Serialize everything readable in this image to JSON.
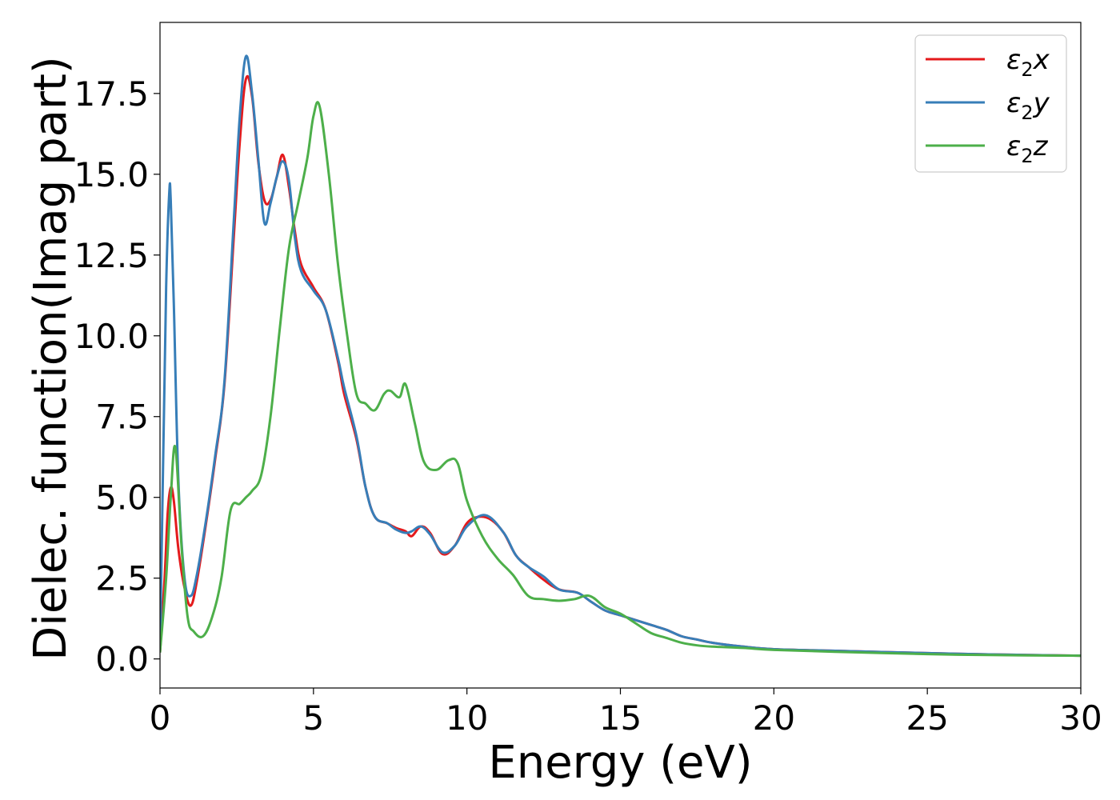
{
  "chart_data": {
    "type": "line",
    "title": "",
    "xlabel": "Energy (eV)",
    "ylabel": "Dielec. function(Imag part)",
    "xlim": [
      0,
      30
    ],
    "ylim": [
      -0.9,
      19.7
    ],
    "xticks": [
      0,
      5,
      10,
      15,
      20,
      25,
      30
    ],
    "xtick_labels": [
      "0",
      "5",
      "10",
      "15",
      "20",
      "25",
      "30"
    ],
    "yticks": [
      0,
      2.5,
      5,
      7.5,
      10,
      12.5,
      15,
      17.5
    ],
    "ytick_labels": [
      "0.0",
      "2.5",
      "5.0",
      "7.5",
      "10.0",
      "12.5",
      "15.0",
      "17.5"
    ],
    "grid": false,
    "legend_position": "top-right",
    "series": [
      {
        "name": "ε₂x",
        "legend_main": "ε",
        "legend_sub": "2",
        "legend_var": "x",
        "color": "#e41a1c",
        "x": [
          0,
          0.15,
          0.25,
          0.35,
          0.45,
          0.6,
          0.8,
          1.0,
          1.2,
          1.5,
          1.8,
          2.1,
          2.4,
          2.6,
          2.8,
          3.0,
          3.2,
          3.4,
          3.6,
          3.8,
          4.0,
          4.2,
          4.4,
          4.6,
          5.0,
          5.4,
          5.8,
          6.0,
          6.4,
          6.7,
          7.0,
          7.4,
          7.7,
          8.0,
          8.2,
          8.5,
          8.8,
          9.2,
          9.6,
          10.0,
          10.4,
          10.8,
          11.2,
          11.6,
          12.0,
          12.5,
          13.0,
          13.6,
          14.0,
          14.5,
          15.0,
          15.5,
          16.0,
          16.5,
          17.0,
          17.5,
          18.0,
          19.0,
          20.0,
          22.0,
          25.0,
          27.0,
          30.0
        ],
        "y": [
          0.2,
          2.5,
          4.5,
          5.3,
          4.9,
          3.4,
          2.2,
          1.65,
          2.4,
          4.2,
          6.2,
          8.5,
          13.0,
          16.0,
          17.95,
          17.4,
          15.4,
          14.2,
          14.2,
          14.9,
          15.6,
          14.6,
          13.2,
          12.2,
          11.5,
          10.8,
          9.2,
          8.2,
          6.8,
          5.3,
          4.4,
          4.2,
          4.05,
          3.95,
          3.8,
          4.1,
          3.9,
          3.25,
          3.5,
          4.2,
          4.4,
          4.3,
          3.9,
          3.2,
          2.85,
          2.45,
          2.15,
          2.05,
          1.8,
          1.5,
          1.35,
          1.2,
          1.05,
          0.9,
          0.7,
          0.6,
          0.5,
          0.38,
          0.3,
          0.25,
          0.18,
          0.14,
          0.1
        ]
      },
      {
        "name": "ε₂y",
        "legend_main": "ε",
        "legend_sub": "2",
        "legend_var": "y",
        "color": "#377eb8",
        "x": [
          0,
          0.1,
          0.2,
          0.3,
          0.35,
          0.45,
          0.6,
          0.8,
          1.0,
          1.2,
          1.5,
          1.8,
          2.1,
          2.4,
          2.6,
          2.8,
          3.0,
          3.2,
          3.4,
          3.6,
          3.8,
          4.0,
          4.2,
          4.4,
          4.6,
          5.0,
          5.4,
          5.8,
          6.0,
          6.4,
          6.7,
          7.0,
          7.4,
          7.7,
          8.0,
          8.2,
          8.5,
          8.8,
          9.2,
          9.6,
          10.0,
          10.6,
          11.2,
          11.6,
          12.0,
          12.5,
          13.0,
          13.6,
          14.0,
          14.5,
          15.0,
          15.5,
          16.0,
          16.5,
          17.0,
          17.5,
          18.0,
          19.0,
          20.0,
          22.0,
          25.0,
          27.0,
          30.0
        ],
        "y": [
          0.2,
          6.0,
          11.5,
          14.4,
          14.2,
          11.0,
          5.5,
          2.5,
          1.95,
          2.6,
          4.3,
          6.3,
          8.6,
          13.5,
          16.8,
          18.65,
          17.5,
          15.5,
          13.5,
          14.1,
          14.9,
          15.4,
          14.8,
          13.0,
          12.0,
          11.4,
          10.8,
          9.3,
          8.4,
          6.9,
          5.3,
          4.4,
          4.2,
          4.0,
          3.9,
          3.95,
          4.1,
          3.85,
          3.3,
          3.5,
          4.1,
          4.45,
          3.9,
          3.2,
          2.85,
          2.55,
          2.15,
          2.05,
          1.8,
          1.5,
          1.35,
          1.2,
          1.05,
          0.9,
          0.7,
          0.6,
          0.5,
          0.38,
          0.3,
          0.25,
          0.18,
          0.14,
          0.1
        ]
      },
      {
        "name": "ε₂z",
        "legend_main": "ε",
        "legend_sub": "2",
        "legend_var": "z",
        "color": "#4daf4a",
        "x": [
          0,
          0.2,
          0.35,
          0.5,
          0.7,
          0.9,
          1.1,
          1.4,
          1.7,
          2.0,
          2.3,
          2.6,
          2.8,
          3.0,
          3.3,
          3.6,
          3.9,
          4.2,
          4.5,
          4.8,
          5.0,
          5.2,
          5.5,
          5.8,
          6.1,
          6.4,
          6.7,
          7.0,
          7.3,
          7.5,
          7.8,
          8.0,
          8.3,
          8.6,
          9.0,
          9.4,
          9.7,
          10.0,
          10.5,
          11.0,
          11.5,
          12.0,
          12.5,
          13.0,
          13.5,
          14.0,
          14.5,
          15.0,
          15.5,
          16.0,
          16.5,
          17.0,
          17.5,
          18.0,
          19.0,
          20.0,
          22.0,
          25.0,
          27.0,
          30.0
        ],
        "y": [
          0.2,
          2.5,
          5.0,
          6.55,
          3.5,
          1.3,
          0.85,
          0.7,
          1.3,
          2.5,
          4.6,
          4.8,
          5.0,
          5.2,
          5.7,
          7.5,
          10.2,
          12.7,
          14.1,
          15.5,
          16.8,
          17.1,
          15.0,
          12.2,
          10.0,
          8.2,
          7.9,
          7.7,
          8.2,
          8.3,
          8.1,
          8.5,
          7.3,
          6.1,
          5.85,
          6.15,
          6.05,
          4.9,
          3.8,
          3.1,
          2.6,
          1.95,
          1.85,
          1.8,
          1.85,
          1.95,
          1.6,
          1.4,
          1.1,
          0.8,
          0.65,
          0.5,
          0.42,
          0.38,
          0.34,
          0.28,
          0.22,
          0.15,
          0.12,
          0.1
        ]
      }
    ]
  }
}
